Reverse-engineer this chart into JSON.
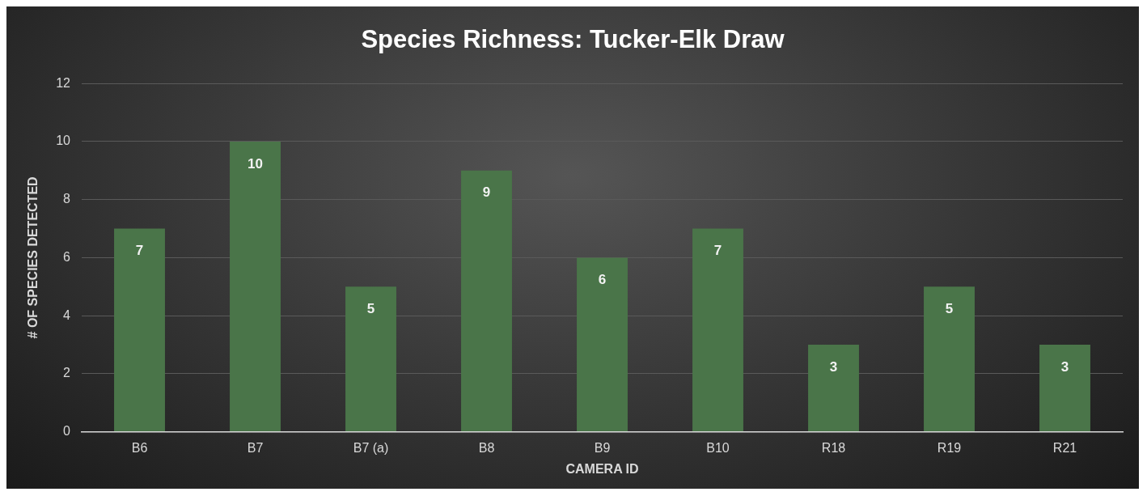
{
  "chart_data": {
    "type": "bar",
    "title": "Species Richness: Tucker-Elk Draw",
    "xlabel": "CAMERA ID",
    "ylabel": "# OF SPECIES DETECTED",
    "categories": [
      "B6",
      "B7",
      "B7 (a)",
      "B8",
      "B9",
      "B10",
      "R18",
      "R19",
      "R21"
    ],
    "values": [
      7,
      10,
      5,
      9,
      6,
      7,
      3,
      5,
      3
    ],
    "color": "#4a7549",
    "ylim": [
      0,
      12
    ],
    "yticks": [
      0,
      2,
      4,
      6,
      8,
      10,
      12
    ],
    "grid": "y",
    "data_labels": true,
    "legend": false
  }
}
